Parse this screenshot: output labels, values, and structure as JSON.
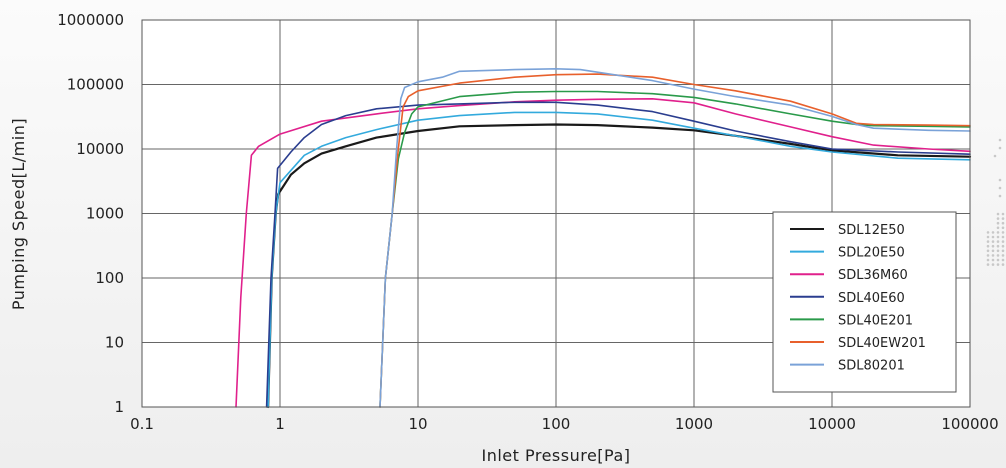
{
  "chart_data": {
    "type": "line",
    "title": "",
    "xlabel": "Inlet Pressure[Pa]",
    "ylabel": "Pumping Speed[L/min]",
    "x_scale": "log",
    "y_scale": "log",
    "xlim": [
      0.1,
      100000
    ],
    "ylim": [
      1,
      1000000
    ],
    "x_ticks": [
      "0.1",
      "1",
      "10",
      "100",
      "1000",
      "10000",
      "100000"
    ],
    "y_ticks": [
      "1",
      "10",
      "100",
      "1000",
      "10000",
      "100000",
      "1000000"
    ],
    "grid": true,
    "legend_position": "bottom-right",
    "series": [
      {
        "name": "SDL12E50",
        "color": "#1a1a1a",
        "points": [
          [
            0.82,
            1
          ],
          [
            0.87,
            100
          ],
          [
            0.93,
            1000
          ],
          [
            0.97,
            2000
          ],
          [
            1.2,
            4000
          ],
          [
            1.5,
            6000
          ],
          [
            2,
            8500
          ],
          [
            3,
            11000
          ],
          [
            5,
            15000
          ],
          [
            10,
            19000
          ],
          [
            20,
            22500
          ],
          [
            50,
            23500
          ],
          [
            100,
            24000
          ],
          [
            200,
            23500
          ],
          [
            500,
            21500
          ],
          [
            1000,
            19500
          ],
          [
            2000,
            16000
          ],
          [
            5000,
            12000
          ],
          [
            10000,
            9500
          ],
          [
            30000,
            8000
          ],
          [
            100000,
            7600
          ]
        ]
      },
      {
        "name": "SDL20E50",
        "color": "#33aadd",
        "points": [
          [
            0.82,
            1
          ],
          [
            0.87,
            100
          ],
          [
            0.93,
            1000
          ],
          [
            1,
            3000
          ],
          [
            1.5,
            8000
          ],
          [
            2,
            11000
          ],
          [
            3,
            15000
          ],
          [
            5,
            20000
          ],
          [
            10,
            28000
          ],
          [
            20,
            33000
          ],
          [
            50,
            37000
          ],
          [
            100,
            37000
          ],
          [
            200,
            35000
          ],
          [
            500,
            28000
          ],
          [
            1000,
            21000
          ],
          [
            2000,
            16000
          ],
          [
            5000,
            11000
          ],
          [
            10000,
            9000
          ],
          [
            30000,
            7200
          ],
          [
            100000,
            6800
          ]
        ]
      },
      {
        "name": "SDL36M60",
        "color": "#e0208c",
        "points": [
          [
            0.48,
            1
          ],
          [
            0.52,
            50
          ],
          [
            0.57,
            1000
          ],
          [
            0.62,
            8000
          ],
          [
            0.7,
            11000
          ],
          [
            1,
            17000
          ],
          [
            2,
            27000
          ],
          [
            5,
            35000
          ],
          [
            10,
            42000
          ],
          [
            20,
            47000
          ],
          [
            50,
            54000
          ],
          [
            100,
            57000
          ],
          [
            200,
            59000
          ],
          [
            500,
            60000
          ],
          [
            1000,
            52000
          ],
          [
            2000,
            35000
          ],
          [
            5000,
            22000
          ],
          [
            10000,
            15500
          ],
          [
            20000,
            11500
          ],
          [
            50000,
            10000
          ],
          [
            100000,
            9200
          ]
        ]
      },
      {
        "name": "SDL40E60",
        "color": "#2a3d8f",
        "points": [
          [
            0.8,
            1
          ],
          [
            0.86,
            100
          ],
          [
            0.92,
            1000
          ],
          [
            0.96,
            5000
          ],
          [
            1.2,
            9000
          ],
          [
            1.5,
            15000
          ],
          [
            2,
            24000
          ],
          [
            3,
            33000
          ],
          [
            5,
            42000
          ],
          [
            10,
            48000
          ],
          [
            20,
            50000
          ],
          [
            50,
            53000
          ],
          [
            100,
            53000
          ],
          [
            200,
            48000
          ],
          [
            500,
            38000
          ],
          [
            1000,
            27000
          ],
          [
            2000,
            19000
          ],
          [
            5000,
            13000
          ],
          [
            10000,
            10000
          ],
          [
            30000,
            9000
          ],
          [
            100000,
            8300
          ]
        ]
      },
      {
        "name": "SDL40E201",
        "color": "#2a9a4a",
        "points": [
          [
            5.3,
            1
          ],
          [
            5.8,
            100
          ],
          [
            6.5,
            1000
          ],
          [
            7.2,
            7000
          ],
          [
            8,
            18000
          ],
          [
            9,
            35000
          ],
          [
            10,
            45000
          ],
          [
            20,
            65000
          ],
          [
            50,
            76000
          ],
          [
            100,
            78000
          ],
          [
            200,
            78000
          ],
          [
            500,
            72000
          ],
          [
            1000,
            63000
          ],
          [
            2000,
            50000
          ],
          [
            5000,
            35000
          ],
          [
            10000,
            27000
          ],
          [
            15000,
            24000
          ],
          [
            20000,
            23000
          ],
          [
            50000,
            22500
          ],
          [
            100000,
            22000
          ]
        ]
      },
      {
        "name": "SDL40EW201",
        "color": "#e8602c",
        "points": [
          [
            5.3,
            1
          ],
          [
            5.8,
            100
          ],
          [
            6.5,
            1000
          ],
          [
            7.2,
            10000
          ],
          [
            7.8,
            45000
          ],
          [
            8.5,
            65000
          ],
          [
            10,
            80000
          ],
          [
            20,
            105000
          ],
          [
            50,
            130000
          ],
          [
            100,
            142000
          ],
          [
            200,
            145000
          ],
          [
            500,
            130000
          ],
          [
            1000,
            100000
          ],
          [
            2000,
            80000
          ],
          [
            5000,
            55000
          ],
          [
            10000,
            35000
          ],
          [
            15000,
            25000
          ],
          [
            20000,
            24000
          ],
          [
            50000,
            23500
          ],
          [
            100000,
            23000
          ]
        ]
      },
      {
        "name": "SDL80201",
        "color": "#7aa2d8",
        "points": [
          [
            5.3,
            1
          ],
          [
            5.8,
            100
          ],
          [
            6.5,
            1000
          ],
          [
            7,
            10000
          ],
          [
            7.5,
            60000
          ],
          [
            8,
            90000
          ],
          [
            10,
            110000
          ],
          [
            15,
            130000
          ],
          [
            20,
            160000
          ],
          [
            50,
            170000
          ],
          [
            100,
            175000
          ],
          [
            150,
            170000
          ],
          [
            200,
            155000
          ],
          [
            500,
            115000
          ],
          [
            1000,
            85000
          ],
          [
            2000,
            65000
          ],
          [
            5000,
            48000
          ],
          [
            10000,
            32000
          ],
          [
            15000,
            24000
          ],
          [
            20000,
            21000
          ],
          [
            50000,
            19500
          ],
          [
            100000,
            19000
          ]
        ]
      }
    ]
  }
}
